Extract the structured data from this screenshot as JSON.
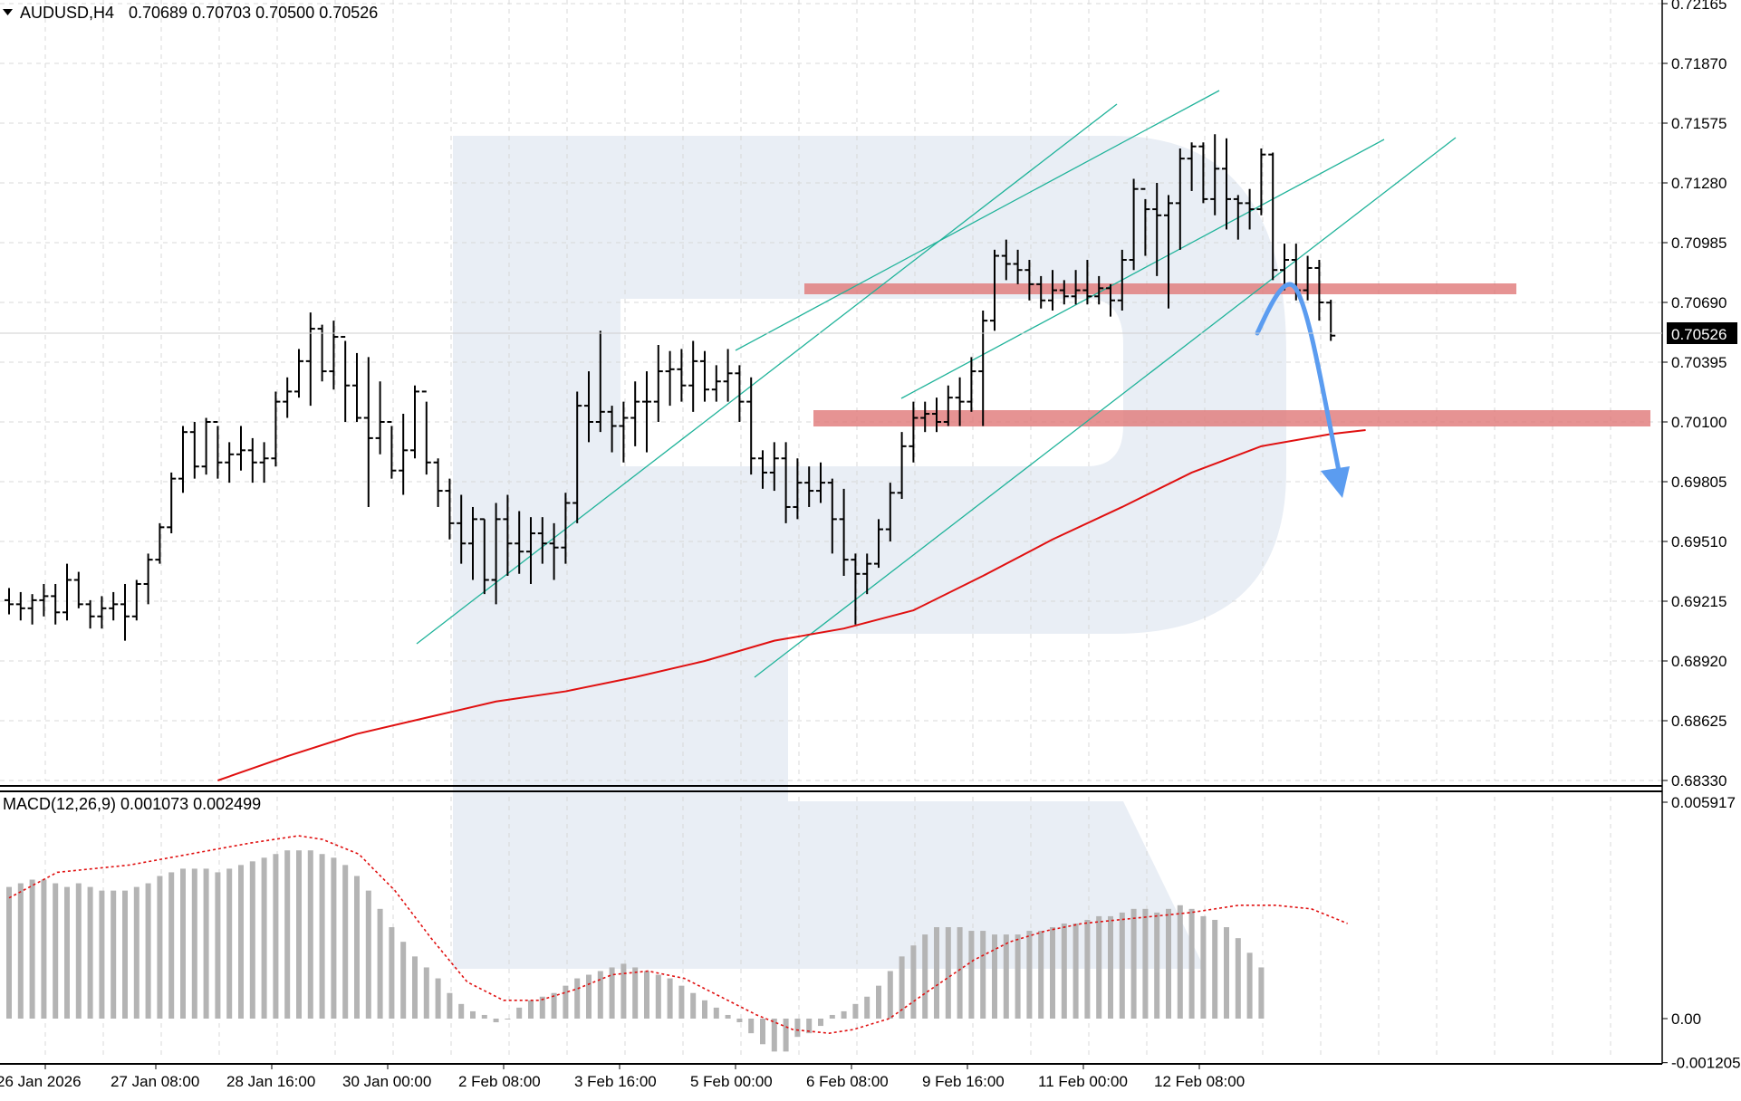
{
  "header": {
    "symbol": "AUDUSD,H4",
    "ohlc": "0.70689 0.70703 0.70500 0.70526",
    "dropdown_icon": "triangle-down-icon"
  },
  "macd": {
    "label": "MACD(12,26,9) 0.001073 0.002499",
    "y_ticks": [
      "0.005917",
      "0.00",
      "-0.001205"
    ]
  },
  "price_axis": {
    "ticks": [
      "0.72165",
      "0.71870",
      "0.71575",
      "0.71280",
      "0.70985",
      "0.70690",
      "0.70395",
      "0.70100",
      "0.69805",
      "0.69510",
      "0.69215",
      "0.68920",
      "0.68625",
      "0.68330"
    ],
    "current_price": "0.70526"
  },
  "time_axis": {
    "ticks": [
      "26 Jan 2026",
      "27 Jan 08:00",
      "28 Jan 16:00",
      "30 Jan 00:00",
      "2 Feb 08:00",
      "3 Feb 16:00",
      "5 Feb 00:00",
      "6 Feb 08:00",
      "9 Feb 16:00",
      "11 Feb 00:00",
      "12 Feb 08:00"
    ]
  },
  "colors": {
    "bars": "#000000",
    "moving_average": "#e01010",
    "macd_hist": "#b4b4b4",
    "macd_signal": "#e01010",
    "channel_lines": "#20b39a",
    "zones": "#e07878",
    "forecast_arrow": "#5b9cf0",
    "grid": "#d8d8d8",
    "watermark": "#e9eef5"
  },
  "chart_data": {
    "type": "ohlc",
    "title": "AUDUSD,H4",
    "timeframe": "H4",
    "x": [
      "26 Jan 2026",
      "27 Jan 08:00",
      "28 Jan 16:00",
      "30 Jan 00:00",
      "2 Feb 08:00",
      "3 Feb 16:00",
      "5 Feb 00:00",
      "6 Feb 08:00",
      "9 Feb 16:00",
      "11 Feb 00:00",
      "12 Feb 08:00"
    ],
    "ylim": [
      0.6833,
      0.72165
    ],
    "grid": true,
    "last_bar": {
      "open": 0.70689,
      "high": 0.70703,
      "low": 0.705,
      "close": 0.70526
    },
    "bars": [
      [
        0.6922,
        0.6928,
        0.6915,
        0.692
      ],
      [
        0.692,
        0.6926,
        0.6912,
        0.6918
      ],
      [
        0.6918,
        0.6925,
        0.691,
        0.6922
      ],
      [
        0.6922,
        0.693,
        0.6914,
        0.6924
      ],
      [
        0.6924,
        0.693,
        0.691,
        0.6916
      ],
      [
        0.6916,
        0.694,
        0.6912,
        0.6932
      ],
      [
        0.6932,
        0.6936,
        0.6918,
        0.692
      ],
      [
        0.692,
        0.6922,
        0.6908,
        0.6914
      ],
      [
        0.6914,
        0.6924,
        0.6908,
        0.6918
      ],
      [
        0.6918,
        0.6926,
        0.6912,
        0.692
      ],
      [
        0.692,
        0.693,
        0.6902,
        0.6914
      ],
      [
        0.6914,
        0.6932,
        0.6912,
        0.693
      ],
      [
        0.693,
        0.6945,
        0.692,
        0.6942
      ],
      [
        0.6942,
        0.696,
        0.694,
        0.6958
      ],
      [
        0.6958,
        0.6985,
        0.6955,
        0.6982
      ],
      [
        0.6982,
        0.7008,
        0.6975,
        0.7005
      ],
      [
        0.7005,
        0.701,
        0.6982,
        0.6988
      ],
      [
        0.6988,
        0.7012,
        0.6984,
        0.701
      ],
      [
        0.701,
        0.7008,
        0.6982,
        0.699
      ],
      [
        0.699,
        0.7,
        0.698,
        0.6994
      ],
      [
        0.6994,
        0.7008,
        0.6986,
        0.6996
      ],
      [
        0.6996,
        0.7002,
        0.698,
        0.699
      ],
      [
        0.699,
        0.7,
        0.698,
        0.6992
      ],
      [
        0.6992,
        0.7025,
        0.6988,
        0.702
      ],
      [
        0.702,
        0.7032,
        0.7012,
        0.7025
      ],
      [
        0.7025,
        0.7046,
        0.7022,
        0.704
      ],
      [
        0.704,
        0.7064,
        0.7018,
        0.7056
      ],
      [
        0.7056,
        0.7058,
        0.703,
        0.7035
      ],
      [
        0.7035,
        0.706,
        0.7026,
        0.7052
      ],
      [
        0.7052,
        0.705,
        0.701,
        0.7028
      ],
      [
        0.7028,
        0.7044,
        0.701,
        0.7012
      ],
      [
        0.7012,
        0.7042,
        0.6968,
        0.7002
      ],
      [
        0.7002,
        0.703,
        0.6994,
        0.701
      ],
      [
        0.701,
        0.7008,
        0.6982,
        0.6986
      ],
      [
        0.6986,
        0.7014,
        0.6974,
        0.6996
      ],
      [
        0.6996,
        0.7028,
        0.6992,
        0.7025
      ],
      [
        0.7025,
        0.702,
        0.6984,
        0.699
      ],
      [
        0.699,
        0.6992,
        0.6968,
        0.6976
      ],
      [
        0.6976,
        0.6982,
        0.6952,
        0.696
      ],
      [
        0.696,
        0.6974,
        0.694,
        0.695
      ],
      [
        0.695,
        0.6968,
        0.6932,
        0.6962
      ],
      [
        0.6962,
        0.6962,
        0.6925,
        0.6932
      ],
      [
        0.6932,
        0.697,
        0.692,
        0.6962
      ],
      [
        0.6962,
        0.6974,
        0.6934,
        0.695
      ],
      [
        0.695,
        0.6966,
        0.6935,
        0.6946
      ],
      [
        0.6946,
        0.6963,
        0.693,
        0.6955
      ],
      [
        0.6955,
        0.6963,
        0.694,
        0.695
      ],
      [
        0.695,
        0.696,
        0.6932,
        0.6948
      ],
      [
        0.6948,
        0.6975,
        0.694,
        0.697
      ],
      [
        0.697,
        0.7025,
        0.696,
        0.7018
      ],
      [
        0.7018,
        0.7035,
        0.7,
        0.701
      ],
      [
        0.701,
        0.7055,
        0.7005,
        0.7015
      ],
      [
        0.7015,
        0.7018,
        0.6995,
        0.7008
      ],
      [
        0.7008,
        0.702,
        0.699,
        0.7012
      ],
      [
        0.7012,
        0.703,
        0.6998,
        0.702
      ],
      [
        0.702,
        0.7035,
        0.6995,
        0.702
      ],
      [
        0.702,
        0.7048,
        0.701,
        0.7035
      ],
      [
        0.7035,
        0.7045,
        0.7018,
        0.7036
      ],
      [
        0.7036,
        0.7046,
        0.702,
        0.7028
      ],
      [
        0.7028,
        0.705,
        0.7015,
        0.704
      ],
      [
        0.704,
        0.7045,
        0.702,
        0.7026
      ],
      [
        0.7026,
        0.7038,
        0.702,
        0.703
      ],
      [
        0.703,
        0.7046,
        0.702,
        0.7034
      ],
      [
        0.7034,
        0.7038,
        0.701,
        0.702
      ],
      [
        0.702,
        0.7032,
        0.6984,
        0.6992
      ],
      [
        0.6992,
        0.6996,
        0.6977,
        0.6985
      ],
      [
        0.6985,
        0.7,
        0.6976,
        0.6992
      ],
      [
        0.6992,
        0.7,
        0.696,
        0.6968
      ],
      [
        0.6968,
        0.6992,
        0.6962,
        0.698
      ],
      [
        0.698,
        0.6988,
        0.6968,
        0.6976
      ],
      [
        0.6976,
        0.699,
        0.697,
        0.698
      ],
      [
        0.698,
        0.6982,
        0.6945,
        0.6962
      ],
      [
        0.6962,
        0.6977,
        0.6934,
        0.6942
      ],
      [
        0.6942,
        0.6945,
        0.691,
        0.6935
      ],
      [
        0.6935,
        0.6945,
        0.6925,
        0.694
      ],
      [
        0.694,
        0.6962,
        0.6938,
        0.6957
      ],
      [
        0.6957,
        0.698,
        0.6951,
        0.6975
      ],
      [
        0.6975,
        0.7005,
        0.6972,
        0.6998
      ],
      [
        0.6998,
        0.702,
        0.699,
        0.7012
      ],
      [
        0.7012,
        0.702,
        0.7005,
        0.7014
      ],
      [
        0.7014,
        0.7022,
        0.7005,
        0.701
      ],
      [
        0.701,
        0.7028,
        0.7008,
        0.7022
      ],
      [
        0.7022,
        0.7032,
        0.7008,
        0.702
      ],
      [
        0.702,
        0.7042,
        0.7015,
        0.7035
      ],
      [
        0.7035,
        0.7065,
        0.7008,
        0.706
      ],
      [
        0.706,
        0.7095,
        0.7055,
        0.7092
      ],
      [
        0.7092,
        0.71,
        0.708,
        0.7088
      ],
      [
        0.7088,
        0.7095,
        0.7078,
        0.7085
      ],
      [
        0.7085,
        0.709,
        0.707,
        0.7078
      ],
      [
        0.7078,
        0.7082,
        0.7066,
        0.707
      ],
      [
        0.707,
        0.7085,
        0.7065,
        0.7075
      ],
      [
        0.7075,
        0.708,
        0.7068,
        0.7072
      ],
      [
        0.7072,
        0.7085,
        0.7068,
        0.7075
      ],
      [
        0.7075,
        0.709,
        0.7068,
        0.7072
      ],
      [
        0.7072,
        0.7082,
        0.7068,
        0.7076
      ],
      [
        0.7076,
        0.7078,
        0.7062,
        0.707
      ],
      [
        0.707,
        0.7095,
        0.7065,
        0.709
      ],
      [
        0.709,
        0.713,
        0.7085,
        0.7125
      ],
      [
        0.7125,
        0.712,
        0.7092,
        0.7115
      ],
      [
        0.7115,
        0.7128,
        0.7082,
        0.7112
      ],
      [
        0.7112,
        0.7122,
        0.7066,
        0.7118
      ],
      [
        0.7118,
        0.7145,
        0.7095,
        0.714
      ],
      [
        0.714,
        0.7148,
        0.7124,
        0.7146
      ],
      [
        0.7146,
        0.7148,
        0.7118,
        0.712
      ],
      [
        0.712,
        0.7152,
        0.7112,
        0.7135
      ],
      [
        0.7135,
        0.715,
        0.7105,
        0.712
      ],
      [
        0.712,
        0.7122,
        0.71,
        0.7118
      ],
      [
        0.7118,
        0.7125,
        0.7105,
        0.7115
      ],
      [
        0.7115,
        0.7145,
        0.7112,
        0.7142
      ],
      [
        0.7142,
        0.7143,
        0.708,
        0.7085
      ],
      [
        0.7085,
        0.7098,
        0.7075,
        0.709
      ],
      [
        0.709,
        0.7098,
        0.707,
        0.7075
      ],
      [
        0.7075,
        0.7092,
        0.707,
        0.7086
      ],
      [
        0.7086,
        0.709,
        0.706,
        0.7069
      ],
      [
        0.70689,
        0.70703,
        0.705,
        0.70526
      ]
    ],
    "moving_average": [
      [
        18,
        0.6833
      ],
      [
        24,
        0.6845
      ],
      [
        30,
        0.6856
      ],
      [
        36,
        0.6864
      ],
      [
        42,
        0.6872
      ],
      [
        48,
        0.6877
      ],
      [
        54,
        0.6884
      ],
      [
        60,
        0.6892
      ],
      [
        66,
        0.6902
      ],
      [
        72,
        0.6908
      ],
      [
        78,
        0.6917
      ],
      [
        84,
        0.6934
      ],
      [
        90,
        0.6952
      ],
      [
        96,
        0.6968
      ],
      [
        102,
        0.6985
      ],
      [
        108,
        0.6998
      ],
      [
        114,
        0.7004
      ],
      [
        117,
        0.7006
      ]
    ],
    "macd_histogram": [
      0.0036,
      0.0037,
      0.0038,
      0.0038,
      0.0037,
      0.0036,
      0.0037,
      0.0036,
      0.0035,
      0.0035,
      0.0035,
      0.0036,
      0.0037,
      0.0039,
      0.004,
      0.0041,
      0.0041,
      0.0041,
      0.004,
      0.0041,
      0.0042,
      0.0043,
      0.0044,
      0.0045,
      0.0046,
      0.0046,
      0.0046,
      0.0045,
      0.0044,
      0.0042,
      0.0039,
      0.0035,
      0.003,
      0.0025,
      0.0021,
      0.0017,
      0.0014,
      0.0011,
      0.0007,
      0.0004,
      0.0002,
      0.0001,
      -0.0001,
      0.0,
      0.0003,
      0.0005,
      0.0006,
      0.0007,
      0.0009,
      0.0011,
      0.0012,
      0.0013,
      0.0014,
      0.0015,
      0.0014,
      0.0013,
      0.0012,
      0.0011,
      0.0009,
      0.0007,
      0.0005,
      0.0003,
      0.0001,
      -0.0001,
      -0.0004,
      -0.0007,
      -0.0009,
      -0.0009,
      -0.0005,
      -0.0004,
      -0.0002,
      0.0001,
      0.0002,
      0.0004,
      0.0006,
      0.0009,
      0.0013,
      0.0017,
      0.002,
      0.0023,
      0.0025,
      0.0025,
      0.0025,
      0.0024,
      0.0024,
      0.0023,
      0.0023,
      0.0023,
      0.0024,
      0.0024,
      0.0025,
      0.0026,
      0.0026,
      0.0027,
      0.0028,
      0.0028,
      0.0029,
      0.003,
      0.003,
      0.0029,
      0.003,
      0.0031,
      0.003,
      0.0028,
      0.0027,
      0.0025,
      0.0022,
      0.0018,
      0.0014
    ],
    "macd_signal": [
      [
        0,
        0.0033
      ],
      [
        8,
        0.004
      ],
      [
        20,
        0.0042
      ],
      [
        30,
        0.0045
      ],
      [
        40,
        0.0048
      ],
      [
        48,
        0.005
      ],
      [
        52,
        0.0049
      ],
      [
        58,
        0.0045
      ],
      [
        64,
        0.0035
      ],
      [
        70,
        0.0022
      ],
      [
        76,
        0.001
      ],
      [
        82,
        0.0005
      ],
      [
        88,
        0.0005
      ],
      [
        94,
        0.0008
      ],
      [
        100,
        0.0012
      ],
      [
        106,
        0.0013
      ],
      [
        112,
        0.0011
      ],
      [
        118,
        0.0006
      ],
      [
        124,
        0.0001
      ],
      [
        130,
        -0.0003
      ],
      [
        136,
        -0.0004
      ],
      [
        140,
        -0.0003
      ],
      [
        146,
        0.0
      ],
      [
        152,
        0.0007
      ],
      [
        160,
        0.0016
      ],
      [
        166,
        0.0021
      ],
      [
        172,
        0.0024
      ],
      [
        178,
        0.0026
      ],
      [
        184,
        0.0027
      ],
      [
        190,
        0.0028
      ],
      [
        196,
        0.0029
      ],
      [
        204,
        0.0031
      ],
      [
        210,
        0.0031
      ],
      [
        216,
        0.003
      ],
      [
        222,
        0.0026
      ]
    ]
  }
}
